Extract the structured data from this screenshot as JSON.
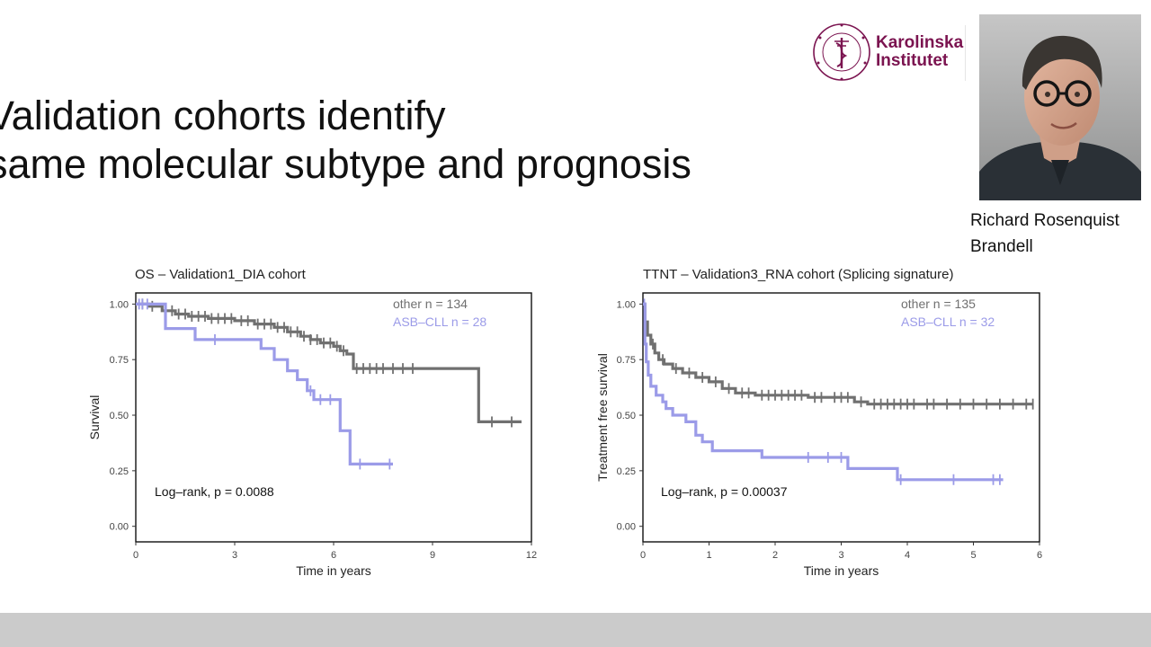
{
  "slide": {
    "title_line1": "Validation cohorts identify",
    "title_line2": "same molecular subtype and prognosis"
  },
  "logo": {
    "line1": "Karolinska",
    "line2": "Institutet",
    "seal_text": "KAROLINSKA INSTITUTET ANNO 1810"
  },
  "speaker": {
    "first": "Richard Rosenquist",
    "last": "Brandell"
  },
  "colors": {
    "other": "#707070",
    "asb": "#9b9be8",
    "brand": "#7b1450"
  },
  "chart_data": [
    {
      "type": "line",
      "title": "OS – Validation1_DIA cohort",
      "xlabel": "Time in years",
      "ylabel": "Survival",
      "xlim": [
        0,
        12
      ],
      "ylim": [
        0,
        1
      ],
      "xticks": [
        "0",
        "3",
        "6",
        "9",
        "12"
      ],
      "yticks": [
        "0.00",
        "0.25",
        "0.50",
        "0.75",
        "1.00"
      ],
      "annotation": "Log–rank, p = 0.0088",
      "legend_position": "top-right",
      "series": [
        {
          "name": "other n = 134",
          "color": "#707070",
          "steps": [
            [
              0,
              1.0
            ],
            [
              0.4,
              0.99
            ],
            [
              0.8,
              0.97
            ],
            [
              1.2,
              0.955
            ],
            [
              1.6,
              0.945
            ],
            [
              2.2,
              0.935
            ],
            [
              3.0,
              0.925
            ],
            [
              3.6,
              0.91
            ],
            [
              4.2,
              0.895
            ],
            [
              4.6,
              0.875
            ],
            [
              5.0,
              0.855
            ],
            [
              5.3,
              0.84
            ],
            [
              5.6,
              0.825
            ],
            [
              6.0,
              0.81
            ],
            [
              6.2,
              0.79
            ],
            [
              6.4,
              0.775
            ],
            [
              6.6,
              0.71
            ],
            [
              10.4,
              0.71
            ],
            [
              10.4,
              0.47
            ],
            [
              11.7,
              0.47
            ]
          ],
          "censors": [
            0.2,
            0.5,
            0.9,
            1.1,
            1.3,
            1.5,
            1.7,
            1.9,
            2.1,
            2.3,
            2.5,
            2.7,
            2.9,
            3.2,
            3.4,
            3.7,
            3.9,
            4.1,
            4.3,
            4.5,
            4.7,
            4.9,
            5.1,
            5.3,
            5.5,
            5.7,
            5.9,
            6.1,
            6.3,
            6.7,
            6.9,
            7.1,
            7.3,
            7.5,
            7.8,
            8.1,
            8.4,
            10.8,
            11.4
          ]
        },
        {
          "name": "ASB–CLL  n = 28",
          "color": "#9b9be8",
          "steps": [
            [
              0,
              1.0
            ],
            [
              0.9,
              0.96
            ],
            [
              0.9,
              0.89
            ],
            [
              1.8,
              0.89
            ],
            [
              1.8,
              0.84
            ],
            [
              3.8,
              0.84
            ],
            [
              3.8,
              0.8
            ],
            [
              4.2,
              0.8
            ],
            [
              4.2,
              0.75
            ],
            [
              4.6,
              0.75
            ],
            [
              4.6,
              0.7
            ],
            [
              4.9,
              0.7
            ],
            [
              4.9,
              0.66
            ],
            [
              5.2,
              0.66
            ],
            [
              5.2,
              0.61
            ],
            [
              5.4,
              0.61
            ],
            [
              5.4,
              0.57
            ],
            [
              6.2,
              0.57
            ],
            [
              6.2,
              0.43
            ],
            [
              6.5,
              0.43
            ],
            [
              6.5,
              0.28
            ],
            [
              7.8,
              0.28
            ]
          ],
          "censors": [
            0.1,
            0.2,
            0.35,
            2.4,
            5.3,
            5.6,
            5.9,
            6.8,
            7.7
          ]
        }
      ]
    },
    {
      "type": "line",
      "title": "TTNT – Validation3_RNA cohort (Splicing signature)",
      "xlabel": "Time in years",
      "ylabel": "Treatment free survival",
      "xlim": [
        0,
        6
      ],
      "ylim": [
        0,
        1
      ],
      "xticks": [
        "0",
        "1",
        "2",
        "3",
        "4",
        "5",
        "6"
      ],
      "yticks": [
        "0.00",
        "0.25",
        "0.50",
        "0.75",
        "1.00"
      ],
      "annotation": "Log–rank, p = 0.00037",
      "legend_position": "top-right",
      "series": [
        {
          "name": "other n = 135",
          "color": "#707070",
          "steps": [
            [
              0,
              1.0
            ],
            [
              0.03,
              0.92
            ],
            [
              0.07,
              0.86
            ],
            [
              0.12,
              0.82
            ],
            [
              0.18,
              0.78
            ],
            [
              0.24,
              0.75
            ],
            [
              0.32,
              0.73
            ],
            [
              0.45,
              0.71
            ],
            [
              0.6,
              0.69
            ],
            [
              0.8,
              0.67
            ],
            [
              1.0,
              0.65
            ],
            [
              1.2,
              0.62
            ],
            [
              1.4,
              0.6
            ],
            [
              1.7,
              0.59
            ],
            [
              2.5,
              0.58
            ],
            [
              3.2,
              0.56
            ],
            [
              3.4,
              0.55
            ],
            [
              5.9,
              0.55
            ]
          ],
          "censors": [
            0.15,
            0.3,
            0.5,
            0.7,
            0.9,
            1.1,
            1.3,
            1.5,
            1.6,
            1.8,
            1.9,
            2.0,
            2.1,
            2.2,
            2.3,
            2.4,
            2.6,
            2.7,
            2.9,
            3.0,
            3.1,
            3.3,
            3.5,
            3.6,
            3.7,
            3.8,
            3.9,
            4.0,
            4.1,
            4.3,
            4.4,
            4.6,
            4.8,
            5.0,
            5.2,
            5.4,
            5.6,
            5.8,
            5.9
          ]
        },
        {
          "name": "ASB–CLL  n = 32",
          "color": "#9b9be8",
          "steps": [
            [
              0,
              1.0
            ],
            [
              0.03,
              0.82
            ],
            [
              0.05,
              0.74
            ],
            [
              0.08,
              0.68
            ],
            [
              0.12,
              0.63
            ],
            [
              0.2,
              0.59
            ],
            [
              0.3,
              0.56
            ],
            [
              0.35,
              0.53
            ],
            [
              0.45,
              0.5
            ],
            [
              0.65,
              0.47
            ],
            [
              0.8,
              0.41
            ],
            [
              0.9,
              0.38
            ],
            [
              1.05,
              0.34
            ],
            [
              1.8,
              0.31
            ],
            [
              3.1,
              0.26
            ],
            [
              3.85,
              0.21
            ],
            [
              5.45,
              0.21
            ]
          ],
          "censors": [
            0.02,
            2.5,
            2.8,
            3.0,
            3.9,
            4.7,
            5.3,
            5.4
          ]
        }
      ]
    }
  ]
}
